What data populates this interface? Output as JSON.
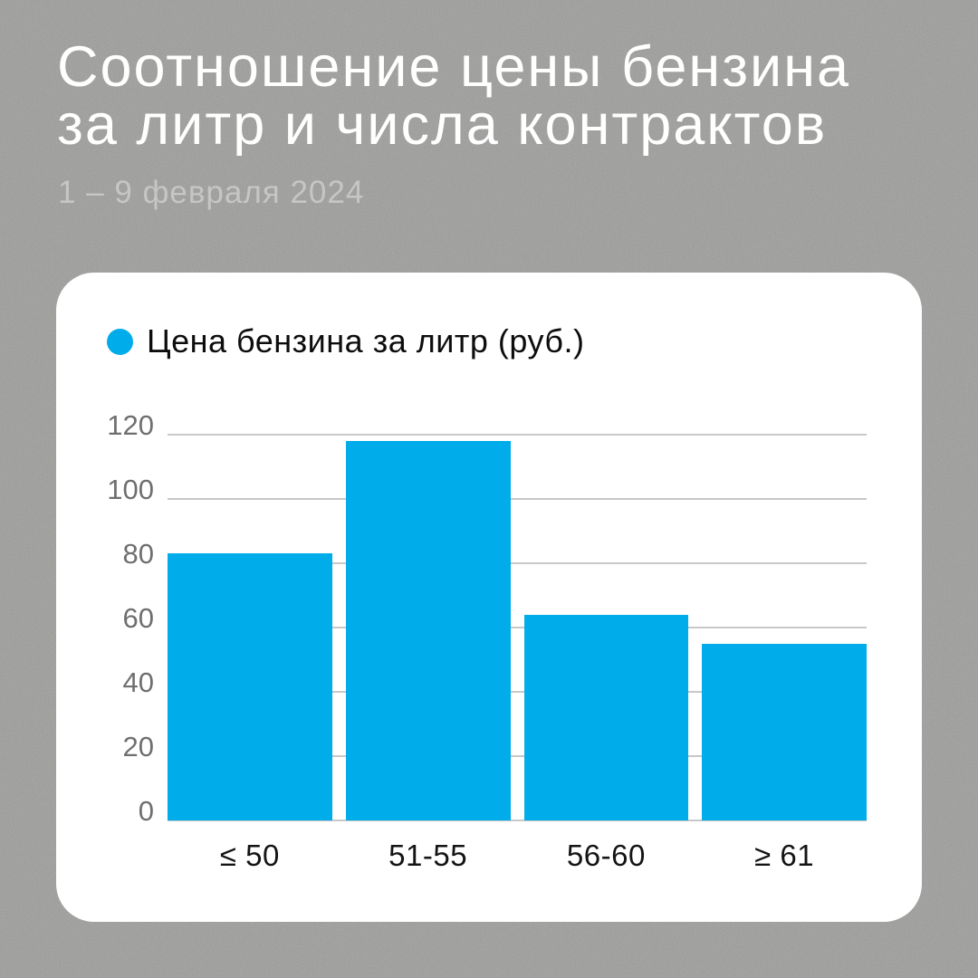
{
  "page": {
    "title_line1": "Соотношение цены бензина",
    "title_line2": "за литр и числа контрактов",
    "subtitle": "1 – 9 февраля 2024"
  },
  "legend": {
    "label": "Цена бензина за литр (руб.)"
  },
  "colors": {
    "background": "#9c9c9a",
    "card": "#ffffff",
    "bar": "#00ace9",
    "title": "#ffffff",
    "subtitle": "#c6c6c4",
    "axis_label": "#6f6f6f",
    "gridline": "#c8c8c8",
    "x_label": "#141414"
  },
  "chart_data": {
    "type": "bar",
    "title": "Соотношение цены бензина за литр и числа контрактов",
    "subtitle": "1 – 9 февраля 2024",
    "series_name": "Цена бензина за литр (руб.)",
    "categories": [
      "≤ 50",
      "51-55",
      "56-60",
      "≥ 61"
    ],
    "values": [
      83,
      118,
      64,
      55
    ],
    "xlabel": "",
    "ylabel": "",
    "ylim": [
      0,
      120
    ],
    "yticks": [
      0,
      20,
      40,
      60,
      80,
      100,
      120
    ],
    "grid": "horizontal",
    "legend_position": "top-left",
    "bar_color": "#00ace9"
  }
}
